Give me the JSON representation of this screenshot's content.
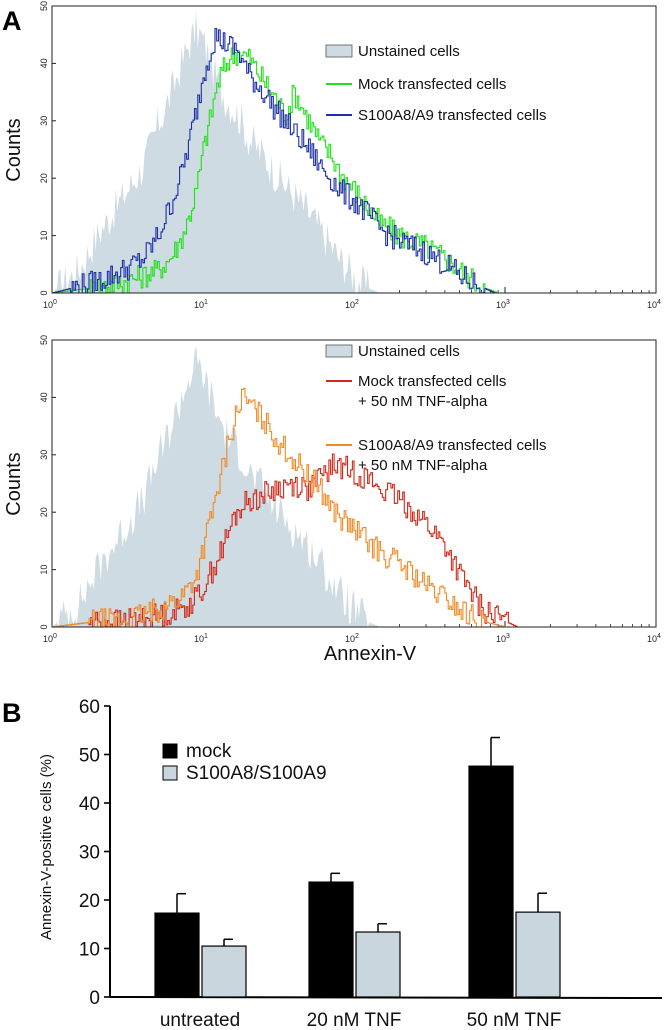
{
  "colors": {
    "unstained": "#cfdbe2",
    "mock": "#22e01c",
    "s100": "#1c2fa6",
    "mock_tnf": "#d2281a",
    "s100_tnf": "#f08a26",
    "bar_mock": "#000000",
    "bar_s100": "#c9d6dd"
  },
  "panels": {
    "A": "A",
    "B": "B"
  },
  "chart_data": [
    {
      "type": "area",
      "panel": "A-top",
      "xlabel": "",
      "ylabel": "Counts",
      "x_scale": "log",
      "xlim": [
        1,
        10000
      ],
      "ylim": [
        0,
        50
      ],
      "x_tick_base": "10",
      "x_tick_exponents": [
        "0",
        "1",
        "2",
        "3",
        "4"
      ],
      "y_ticks": [
        "0",
        "10",
        "20",
        "30",
        "40",
        "50"
      ],
      "legend_position": "top-right",
      "series": [
        {
          "name": "Unstained cells",
          "style": "filled",
          "x": [
            1,
            1.5,
            2,
            3,
            4,
            5,
            6,
            7,
            8,
            9,
            10,
            11,
            12,
            14,
            16,
            18,
            20,
            25,
            30,
            40,
            50,
            60,
            80,
            100,
            120,
            150
          ],
          "y": [
            0,
            4,
            10,
            17,
            22,
            29,
            34,
            39,
            43,
            46,
            44,
            41,
            38,
            34,
            32,
            30,
            27,
            24,
            21,
            17,
            14,
            11,
            6,
            3,
            1,
            0
          ]
        },
        {
          "name": "Mock transfected cells",
          "style": "line",
          "x": [
            1,
            2,
            3,
            4,
            5,
            6,
            7,
            8,
            9,
            10,
            11,
            12,
            13,
            15,
            17,
            20,
            25,
            30,
            35,
            40,
            50,
            60,
            70,
            80,
            100,
            120,
            150,
            200,
            300,
            400,
            500,
            700,
            900,
            1000,
            10000
          ],
          "y": [
            0,
            1,
            2,
            3,
            4,
            6,
            9,
            13,
            18,
            25,
            30,
            35,
            38,
            41,
            42,
            41,
            37,
            34,
            31,
            35,
            30,
            26,
            24,
            21,
            18,
            15,
            12,
            10,
            8,
            6,
            4,
            1,
            0,
            0,
            0
          ]
        },
        {
          "name": "S100A8/A9 transfected cells",
          "style": "line",
          "x": [
            1,
            2,
            3,
            4,
            5,
            6,
            7,
            8,
            9,
            10,
            11,
            12,
            13,
            15,
            17,
            20,
            25,
            30,
            35,
            40,
            50,
            60,
            70,
            80,
            100,
            120,
            150,
            200,
            300,
            400,
            500,
            700,
            850
          ],
          "y": [
            0,
            2,
            4,
            6,
            10,
            15,
            20,
            26,
            32,
            38,
            42,
            45,
            44,
            43,
            42,
            38,
            35,
            32,
            30,
            28,
            25,
            22,
            20,
            18,
            16,
            14,
            11,
            9,
            7,
            5,
            3,
            1,
            0
          ]
        }
      ]
    },
    {
      "type": "area",
      "panel": "A-bottom",
      "xlabel": "Annexin-V",
      "ylabel": "Counts",
      "x_scale": "log",
      "xlim": [
        1,
        10000
      ],
      "ylim": [
        0,
        50
      ],
      "x_tick_base": "10",
      "x_tick_exponents": [
        "0",
        "1",
        "2",
        "3",
        "4"
      ],
      "y_ticks": [
        "0",
        "10",
        "20",
        "30",
        "40",
        "50"
      ],
      "legend_position": "top-right",
      "series": [
        {
          "name": "Unstained cells",
          "style": "filled",
          "x": [
            1,
            1.5,
            2,
            3,
            4,
            5,
            6,
            7,
            8,
            9,
            10,
            11,
            12,
            14,
            16,
            18,
            20,
            25,
            30,
            40,
            50,
            60,
            80,
            100,
            120,
            150
          ],
          "y": [
            0,
            4,
            10,
            17,
            22,
            29,
            34,
            39,
            43,
            46,
            44,
            41,
            38,
            34,
            32,
            30,
            27,
            24,
            21,
            17,
            14,
            11,
            6,
            3,
            1,
            0
          ]
        },
        {
          "name": "Mock transfected cells",
          "name_line2": "+ 50 nM TNF-alpha",
          "style": "line",
          "x": [
            1,
            2,
            3,
            5,
            7,
            9,
            10,
            12,
            14,
            16,
            18,
            20,
            25,
            30,
            40,
            50,
            60,
            70,
            80,
            100,
            120,
            150,
            200,
            250,
            300,
            400,
            500,
            700,
            1000,
            1200
          ],
          "y": [
            0,
            1,
            1,
            2,
            3,
            5,
            7,
            11,
            15,
            19,
            21,
            22,
            23,
            24,
            25,
            24,
            26,
            28,
            28,
            27,
            26,
            24,
            22,
            20,
            18,
            14,
            9,
            3,
            1,
            0
          ]
        },
        {
          "name": "S100A8/A9 transfected cells",
          "name_line2": "+ 50 nM TNF-alpha",
          "style": "line",
          "x": [
            1,
            2,
            3,
            5,
            7,
            9,
            10,
            12,
            14,
            16,
            18,
            20,
            25,
            30,
            40,
            50,
            60,
            70,
            80,
            100,
            120,
            150,
            200,
            250,
            300,
            400,
            500,
            700,
            1000
          ],
          "y": [
            0,
            1,
            1,
            3,
            5,
            9,
            14,
            22,
            30,
            36,
            40,
            39,
            36,
            33,
            29,
            26,
            24,
            21,
            19,
            17,
            15,
            13,
            11,
            9,
            7,
            5,
            3,
            1,
            0
          ]
        }
      ]
    },
    {
      "type": "bar",
      "panel": "B",
      "ylabel": "Annexin-V-positive cells (%)",
      "ylim": [
        0,
        60
      ],
      "y_ticks": [
        "0",
        "10",
        "20",
        "30",
        "40",
        "50",
        "60"
      ],
      "legend_position": "top-left",
      "categories": [
        "untreated",
        "20 nM TNF",
        "50 nM TNF"
      ],
      "series": [
        {
          "name": "mock",
          "values": [
            17.3,
            23.7,
            47.6
          ],
          "errors": [
            4.0,
            1.8,
            5.9
          ]
        },
        {
          "name": "S100A8/S100A9",
          "values": [
            10.5,
            13.4,
            17.5
          ],
          "errors": [
            1.4,
            1.7,
            3.9
          ]
        }
      ]
    }
  ]
}
